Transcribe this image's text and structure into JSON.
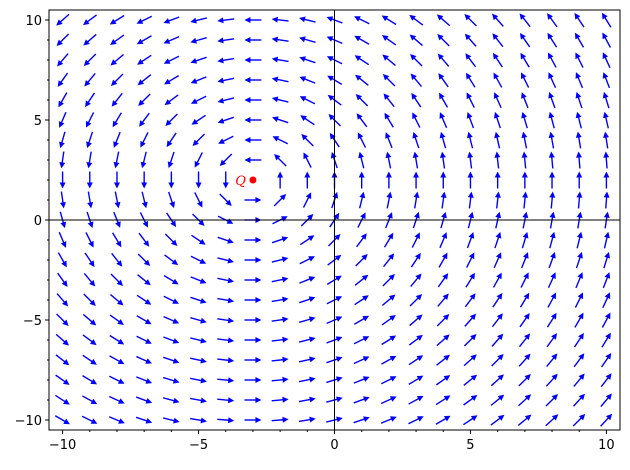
{
  "chart_data": {
    "type": "vector-field",
    "title": "",
    "xlabel": "",
    "ylabel": "",
    "xlim": [
      -10.5,
      10.5
    ],
    "ylim": [
      -10.5,
      10.5
    ],
    "axes_through_origin": true,
    "grid": false,
    "legend": "none",
    "arrow_color": "#0000ff",
    "field_description": "counter-clockwise rotation field centered near (-3, 2); vectors approximately (-(y - 2), (x + 3)) normalized",
    "field_center": [
      -3,
      2
    ],
    "grid_points": {
      "x_start": -10,
      "x_step": 1,
      "count": 21
    },
    "x_ticks": [
      {
        "value": -10,
        "label": "−10"
      },
      {
        "value": -5,
        "label": "−5"
      },
      {
        "value": 0,
        "label": "0"
      },
      {
        "value": 5,
        "label": "5"
      },
      {
        "value": 10,
        "label": "10"
      }
    ],
    "y_ticks": [
      {
        "value": 10,
        "label": "10"
      },
      {
        "value": 5,
        "label": "5"
      },
      {
        "value": 0,
        "label": "0"
      },
      {
        "value": -5,
        "label": "−5"
      },
      {
        "value": -10,
        "label": "−10"
      }
    ],
    "point": {
      "label": "Q",
      "x": -3,
      "y": 2,
      "color": "#ff0000"
    }
  }
}
